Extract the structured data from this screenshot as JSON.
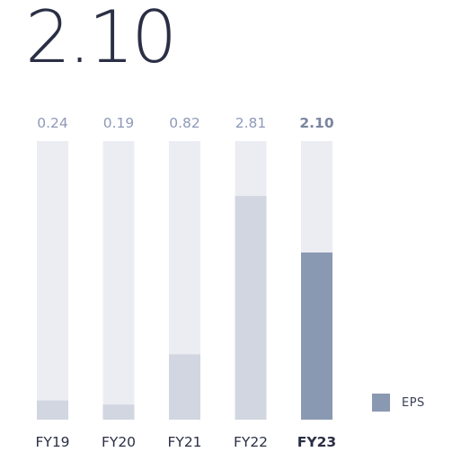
{
  "headline": "2.10",
  "chart_data": {
    "type": "bar",
    "categories": [
      "FY19",
      "FY20",
      "FY21",
      "FY22",
      "FY23"
    ],
    "values": [
      0.24,
      0.19,
      0.82,
      2.81,
      2.1
    ],
    "value_labels": [
      "0.24",
      "0.19",
      "0.82",
      "2.81",
      "2.10"
    ],
    "highlight_index": 4,
    "ylim": [
      0,
      3.5
    ],
    "grid": false,
    "legend": {
      "label": "EPS",
      "placement": "bottom-right"
    },
    "colors": {
      "track": "#ececf3",
      "bar": "#d1d6e0",
      "highlight_bar": "#8a99b2",
      "value_label": "#8f99b8",
      "highlight_value_label": "#7a869f",
      "category_label": "#2b2f45"
    }
  }
}
